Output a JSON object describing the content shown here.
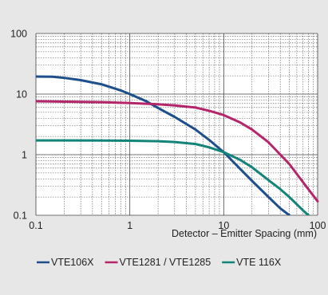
{
  "chart_data": {
    "type": "line",
    "title": "",
    "xlabel": "Detector – Emitter Spacing (mm)",
    "ylabel": "",
    "x_scale": "log",
    "y_scale": "log",
    "xlim": [
      0.1,
      100
    ],
    "ylim": [
      0.1,
      100
    ],
    "x_ticks": [
      {
        "value": 0.1,
        "label": "0.1"
      },
      {
        "value": 1,
        "label": "1"
      },
      {
        "value": 10,
        "label": "10"
      },
      {
        "value": 100,
        "label": "100"
      }
    ],
    "y_ticks": [
      {
        "value": 0.1,
        "label": "0.1"
      },
      {
        "value": 1,
        "label": "1"
      },
      {
        "value": 10,
        "label": "10"
      },
      {
        "value": 100,
        "label": "100"
      }
    ],
    "grid": true,
    "legend_position": "bottom",
    "series": [
      {
        "name": "VTE106X",
        "color": "#1d4f8b",
        "points": [
          [
            0.1,
            19.5
          ],
          [
            0.15,
            19.3
          ],
          [
            0.2,
            18.5
          ],
          [
            0.3,
            17
          ],
          [
            0.5,
            14.5
          ],
          [
            0.8,
            11.5
          ],
          [
            1,
            10
          ],
          [
            1.5,
            7.6
          ],
          [
            2,
            5.9
          ],
          [
            3,
            4.2
          ],
          [
            5,
            2.6
          ],
          [
            7,
            1.75
          ],
          [
            10,
            1.1
          ],
          [
            15,
            0.58
          ],
          [
            20,
            0.37
          ],
          [
            30,
            0.2
          ],
          [
            40,
            0.13
          ],
          [
            50,
            0.1
          ]
        ]
      },
      {
        "name": "VTE1281 / VTE1285",
        "color": "#b5256a",
        "points": [
          [
            0.1,
            7.6
          ],
          [
            0.3,
            7.45
          ],
          [
            0.5,
            7.35
          ],
          [
            1,
            7.1
          ],
          [
            2,
            6.8
          ],
          [
            3,
            6.5
          ],
          [
            5,
            6.0
          ],
          [
            7,
            5.3
          ],
          [
            10,
            4.5
          ],
          [
            15,
            3.4
          ],
          [
            20,
            2.6
          ],
          [
            30,
            1.6
          ],
          [
            50,
            0.7
          ],
          [
            70,
            0.35
          ],
          [
            100,
            0.17
          ]
        ]
      },
      {
        "name": "VTE 116X",
        "color": "#128478",
        "points": [
          [
            0.1,
            1.72
          ],
          [
            0.2,
            1.72
          ],
          [
            0.5,
            1.71
          ],
          [
            1,
            1.7
          ],
          [
            2,
            1.67
          ],
          [
            3,
            1.62
          ],
          [
            5,
            1.5
          ],
          [
            7,
            1.32
          ],
          [
            10,
            1.1
          ],
          [
            15,
            0.82
          ],
          [
            20,
            0.62
          ],
          [
            30,
            0.38
          ],
          [
            40,
            0.27
          ],
          [
            50,
            0.2
          ],
          [
            70,
            0.12
          ],
          [
            80,
            0.1
          ]
        ]
      }
    ]
  }
}
